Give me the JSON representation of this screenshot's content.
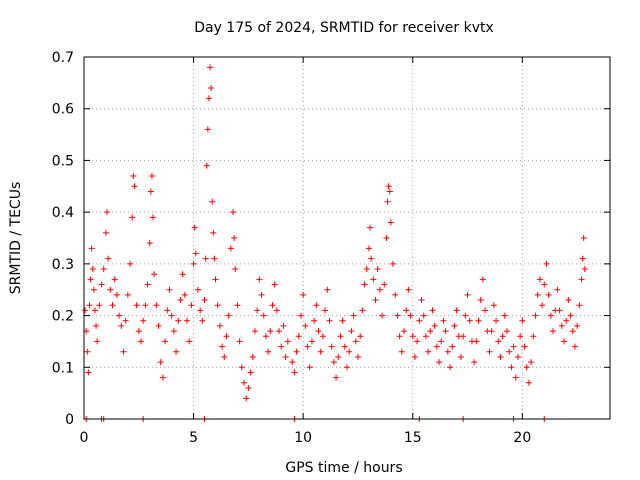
{
  "chart_data": {
    "type": "scatter",
    "title": "Day 175 of 2024, SRMTID for receiver kvtx",
    "xlabel": "GPS time / hours",
    "ylabel": "SRMTID / TECUs",
    "xlim": [
      0,
      24
    ],
    "ylim": [
      0,
      0.7
    ],
    "xticks": [
      0,
      5,
      10,
      15,
      20
    ],
    "xtick_labels": [
      "0",
      "5",
      "10",
      "15",
      "20"
    ],
    "yticks": [
      0,
      0.1,
      0.2,
      0.3,
      0.4,
      0.5,
      0.6,
      0.7
    ],
    "ytick_labels": [
      "0",
      "0.1",
      "0.2",
      "0.3",
      "0.4",
      "0.5",
      "0.6",
      "0.7"
    ],
    "grid": true,
    "marker": "+",
    "color": "#ff0000",
    "series": [
      {
        "name": "SRMTID",
        "points": [
          [
            0.05,
            0.21
          ],
          [
            0.1,
            0.17
          ],
          [
            0.15,
            0.13
          ],
          [
            0.2,
            0.09
          ],
          [
            0.25,
            0.22
          ],
          [
            0.3,
            0.27
          ],
          [
            0.35,
            0.33
          ],
          [
            0.4,
            0.29
          ],
          [
            0.45,
            0.25
          ],
          [
            0.5,
            0.21
          ],
          [
            0.55,
            0.18
          ],
          [
            0.6,
            0.15
          ],
          [
            0.7,
            0.22
          ],
          [
            0.8,
            0.26
          ],
          [
            0.9,
            0.29
          ],
          [
            1.0,
            0.36
          ],
          [
            1.05,
            0.4
          ],
          [
            1.1,
            0.31
          ],
          [
            1.2,
            0.25
          ],
          [
            1.3,
            0.22
          ],
          [
            1.4,
            0.27
          ],
          [
            1.5,
            0.24
          ],
          [
            1.6,
            0.2
          ],
          [
            1.7,
            0.18
          ],
          [
            1.8,
            0.13
          ],
          [
            1.9,
            0.19
          ],
          [
            2.0,
            0.24
          ],
          [
            2.1,
            0.3
          ],
          [
            2.2,
            0.39
          ],
          [
            2.25,
            0.47
          ],
          [
            2.3,
            0.45
          ],
          [
            2.4,
            0.22
          ],
          [
            2.5,
            0.17
          ],
          [
            2.6,
            0.15
          ],
          [
            2.7,
            0.19
          ],
          [
            2.8,
            0.22
          ],
          [
            2.9,
            0.26
          ],
          [
            3.0,
            0.34
          ],
          [
            3.05,
            0.44
          ],
          [
            3.1,
            0.47
          ],
          [
            3.15,
            0.39
          ],
          [
            3.2,
            0.28
          ],
          [
            3.3,
            0.22
          ],
          [
            3.4,
            0.18
          ],
          [
            3.5,
            0.11
          ],
          [
            3.6,
            0.08
          ],
          [
            3.7,
            0.15
          ],
          [
            3.8,
            0.21
          ],
          [
            3.9,
            0.25
          ],
          [
            4.0,
            0.2
          ],
          [
            4.1,
            0.17
          ],
          [
            4.2,
            0.13
          ],
          [
            4.3,
            0.19
          ],
          [
            4.4,
            0.23
          ],
          [
            4.5,
            0.28
          ],
          [
            4.6,
            0.24
          ],
          [
            4.7,
            0.19
          ],
          [
            4.8,
            0.15
          ],
          [
            4.9,
            0.22
          ],
          [
            5.0,
            0.3
          ],
          [
            5.05,
            0.37
          ],
          [
            5.1,
            0.32
          ],
          [
            5.2,
            0.25
          ],
          [
            5.3,
            0.21
          ],
          [
            5.4,
            0.19
          ],
          [
            5.5,
            0.23
          ],
          [
            5.55,
            0.31
          ],
          [
            5.6,
            0.49
          ],
          [
            5.65,
            0.56
          ],
          [
            5.7,
            0.62
          ],
          [
            5.75,
            0.68
          ],
          [
            5.8,
            0.64
          ],
          [
            5.85,
            0.42
          ],
          [
            5.9,
            0.36
          ],
          [
            5.95,
            0.31
          ],
          [
            6.0,
            0.27
          ],
          [
            6.1,
            0.22
          ],
          [
            6.2,
            0.18
          ],
          [
            6.3,
            0.14
          ],
          [
            6.4,
            0.12
          ],
          [
            6.5,
            0.16
          ],
          [
            6.6,
            0.2
          ],
          [
            6.7,
            0.33
          ],
          [
            6.8,
            0.4
          ],
          [
            6.85,
            0.35
          ],
          [
            6.9,
            0.29
          ],
          [
            7.0,
            0.22
          ],
          [
            7.1,
            0.15
          ],
          [
            7.2,
            0.1
          ],
          [
            7.3,
            0.07
          ],
          [
            7.4,
            0.04
          ],
          [
            7.5,
            0.06
          ],
          [
            7.6,
            0.09
          ],
          [
            7.7,
            0.12
          ],
          [
            7.8,
            0.17
          ],
          [
            7.9,
            0.21
          ],
          [
            8.0,
            0.27
          ],
          [
            8.1,
            0.24
          ],
          [
            8.2,
            0.2
          ],
          [
            8.3,
            0.16
          ],
          [
            8.4,
            0.13
          ],
          [
            8.5,
            0.17
          ],
          [
            8.6,
            0.22
          ],
          [
            8.7,
            0.26
          ],
          [
            8.8,
            0.21
          ],
          [
            8.9,
            0.17
          ],
          [
            9.0,
            0.14
          ],
          [
            9.1,
            0.18
          ],
          [
            9.2,
            0.12
          ],
          [
            9.3,
            0.15
          ],
          [
            9.5,
            0.11
          ],
          [
            9.6,
            0.09
          ],
          [
            9.7,
            0.13
          ],
          [
            9.8,
            0.16
          ],
          [
            9.9,
            0.2
          ],
          [
            10.0,
            0.24
          ],
          [
            10.1,
            0.18
          ],
          [
            10.2,
            0.14
          ],
          [
            10.3,
            0.1
          ],
          [
            10.4,
            0.15
          ],
          [
            10.5,
            0.19
          ],
          [
            10.6,
            0.22
          ],
          [
            10.7,
            0.17
          ],
          [
            10.8,
            0.13
          ],
          [
            10.9,
            0.16
          ],
          [
            11.0,
            0.21
          ],
          [
            11.1,
            0.25
          ],
          [
            11.2,
            0.19
          ],
          [
            11.3,
            0.14
          ],
          [
            11.4,
            0.11
          ],
          [
            11.5,
            0.08
          ],
          [
            11.6,
            0.12
          ],
          [
            11.7,
            0.16
          ],
          [
            11.8,
            0.19
          ],
          [
            11.9,
            0.14
          ],
          [
            12.0,
            0.1
          ],
          [
            12.1,
            0.13
          ],
          [
            12.2,
            0.17
          ],
          [
            12.3,
            0.2
          ],
          [
            12.4,
            0.15
          ],
          [
            12.5,
            0.12
          ],
          [
            12.6,
            0.16
          ],
          [
            12.7,
            0.21
          ],
          [
            12.8,
            0.26
          ],
          [
            12.9,
            0.29
          ],
          [
            13.0,
            0.33
          ],
          [
            13.05,
            0.37
          ],
          [
            13.1,
            0.31
          ],
          [
            13.2,
            0.27
          ],
          [
            13.3,
            0.23
          ],
          [
            13.4,
            0.29
          ],
          [
            13.5,
            0.25
          ],
          [
            13.6,
            0.2
          ],
          [
            13.7,
            0.26
          ],
          [
            13.8,
            0.35
          ],
          [
            13.85,
            0.42
          ],
          [
            13.9,
            0.45
          ],
          [
            13.95,
            0.44
          ],
          [
            14.0,
            0.38
          ],
          [
            14.1,
            0.3
          ],
          [
            14.2,
            0.24
          ],
          [
            14.3,
            0.2
          ],
          [
            14.4,
            0.16
          ],
          [
            14.5,
            0.13
          ],
          [
            14.6,
            0.17
          ],
          [
            14.7,
            0.21
          ],
          [
            14.8,
            0.25
          ],
          [
            14.9,
            0.2
          ],
          [
            15.0,
            0.16
          ],
          [
            15.1,
            0.12
          ],
          [
            15.2,
            0.15
          ],
          [
            15.3,
            0.19
          ],
          [
            15.4,
            0.23
          ],
          [
            15.5,
            0.2
          ],
          [
            15.6,
            0.16
          ],
          [
            15.7,
            0.13
          ],
          [
            15.8,
            0.17
          ],
          [
            15.9,
            0.21
          ],
          [
            16.0,
            0.18
          ],
          [
            16.1,
            0.14
          ],
          [
            16.2,
            0.11
          ],
          [
            16.3,
            0.15
          ],
          [
            16.4,
            0.19
          ],
          [
            16.5,
            0.17
          ],
          [
            16.6,
            0.13
          ],
          [
            16.7,
            0.1
          ],
          [
            16.8,
            0.14
          ],
          [
            16.9,
            0.18
          ],
          [
            17.0,
            0.21
          ],
          [
            17.1,
            0.16
          ],
          [
            17.2,
            0.12
          ],
          [
            17.3,
            0.16
          ],
          [
            17.4,
            0.2
          ],
          [
            17.5,
            0.24
          ],
          [
            17.6,
            0.19
          ],
          [
            17.7,
            0.15
          ],
          [
            17.8,
            0.11
          ],
          [
            17.9,
            0.15
          ],
          [
            18.0,
            0.19
          ],
          [
            18.1,
            0.23
          ],
          [
            18.2,
            0.27
          ],
          [
            18.3,
            0.21
          ],
          [
            18.4,
            0.17
          ],
          [
            18.5,
            0.13
          ],
          [
            18.6,
            0.17
          ],
          [
            18.7,
            0.22
          ],
          [
            18.8,
            0.19
          ],
          [
            18.9,
            0.15
          ],
          [
            19.0,
            0.12
          ],
          [
            19.1,
            0.16
          ],
          [
            19.2,
            0.2
          ],
          [
            19.3,
            0.17
          ],
          [
            19.4,
            0.13
          ],
          [
            19.5,
            0.1
          ],
          [
            19.6,
            0.14
          ],
          [
            19.7,
            0.08
          ],
          [
            19.8,
            0.12
          ],
          [
            19.9,
            0.16
          ],
          [
            20.0,
            0.19
          ],
          [
            20.1,
            0.14
          ],
          [
            20.2,
            0.1
          ],
          [
            20.3,
            0.07
          ],
          [
            20.4,
            0.11
          ],
          [
            20.5,
            0.16
          ],
          [
            20.6,
            0.2
          ],
          [
            20.7,
            0.24
          ],
          [
            20.8,
            0.27
          ],
          [
            20.9,
            0.22
          ],
          [
            21.0,
            0.26
          ],
          [
            21.1,
            0.3
          ],
          [
            21.2,
            0.24
          ],
          [
            21.3,
            0.2
          ],
          [
            21.4,
            0.17
          ],
          [
            21.5,
            0.21
          ],
          [
            21.6,
            0.25
          ],
          [
            21.7,
            0.21
          ],
          [
            21.8,
            0.18
          ],
          [
            21.9,
            0.15
          ],
          [
            22.0,
            0.19
          ],
          [
            22.1,
            0.23
          ],
          [
            22.2,
            0.2
          ],
          [
            22.3,
            0.17
          ],
          [
            22.4,
            0.14
          ],
          [
            22.5,
            0.18
          ],
          [
            22.6,
            0.22
          ],
          [
            22.7,
            0.27
          ],
          [
            22.75,
            0.31
          ],
          [
            22.8,
            0.35
          ],
          [
            22.85,
            0.29
          ],
          [
            0.1,
            0.0
          ],
          [
            0.8,
            0.0
          ],
          [
            0.9,
            0.0
          ],
          [
            2.7,
            0.0
          ],
          [
            5.5,
            0.0
          ],
          [
            9.6,
            0.0
          ],
          [
            15.3,
            0.0
          ],
          [
            17.3,
            0.0
          ],
          [
            19.6,
            0.0
          ],
          [
            21.0,
            0.0
          ]
        ]
      }
    ]
  }
}
